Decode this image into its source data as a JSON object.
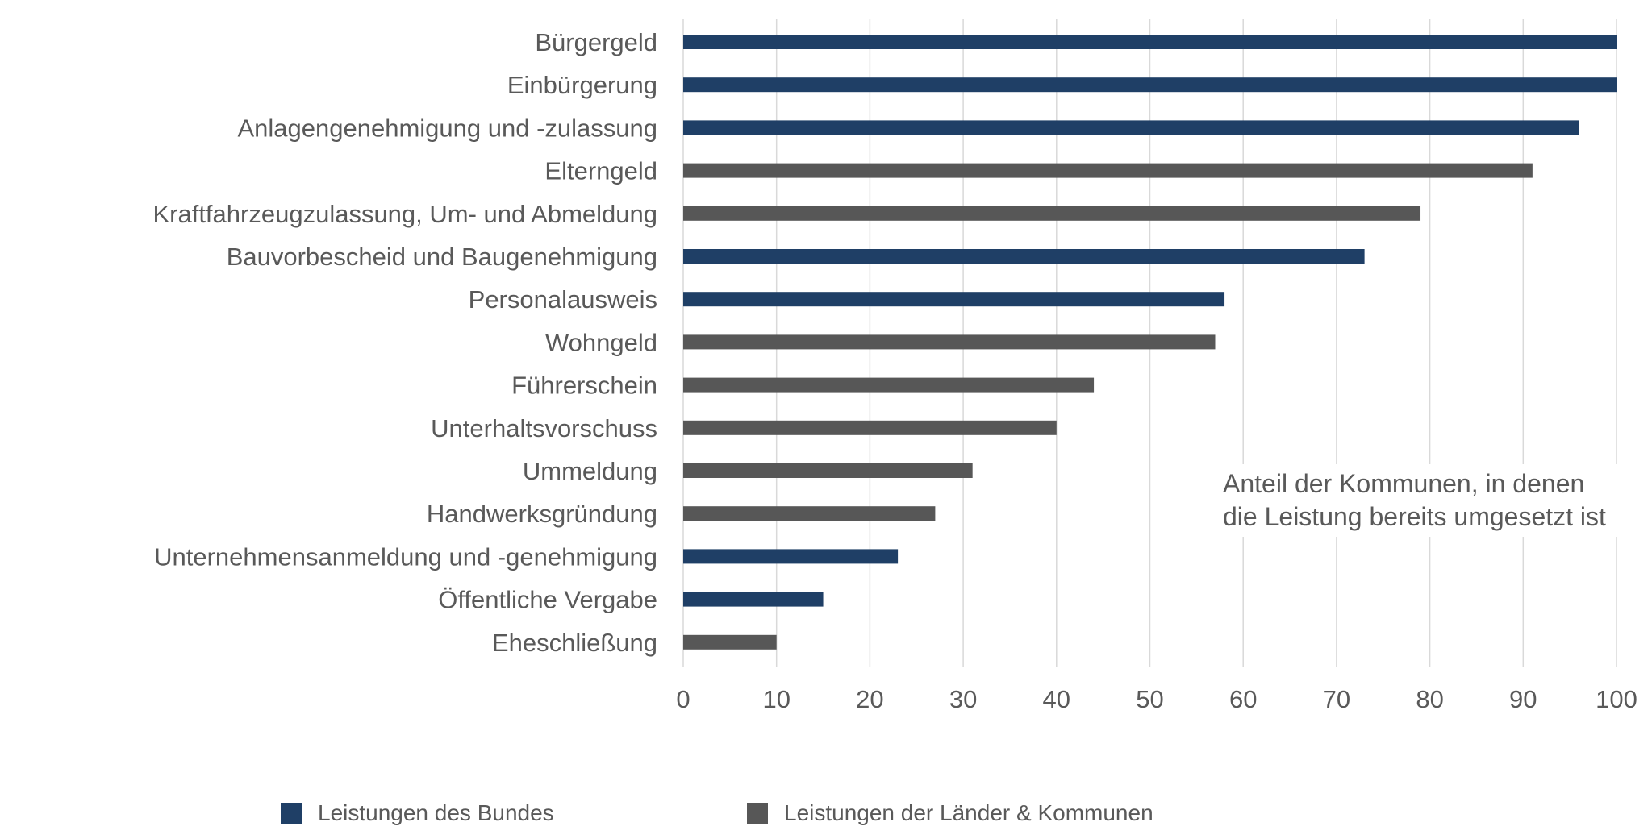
{
  "chart_data": {
    "type": "bar",
    "orientation": "horizontal",
    "categories": [
      "Bürgergeld",
      "Einbürgerung",
      "Anlagengenehmigung und -zulassung",
      "Elterngeld",
      "Kraftfahrzeugzulassung, Um- und Abmeldung",
      "Bauvorbescheid und Baugenehmigung",
      "Personalausweis",
      "Wohngeld",
      "Führerschein",
      "Unterhaltsvorschuss",
      "Ummeldung",
      "Handwerksgründung",
      "Unternehmensanmeldung und -genehmigung",
      "Öffentliche Vergabe",
      "Eheschließung"
    ],
    "values": [
      100,
      100,
      96,
      91,
      79,
      73,
      58,
      57,
      44,
      40,
      31,
      27,
      23,
      15,
      10
    ],
    "group": [
      "bund",
      "bund",
      "bund",
      "laender",
      "laender",
      "bund",
      "bund",
      "laender",
      "laender",
      "laender",
      "laender",
      "laender",
      "bund",
      "bund",
      "laender"
    ],
    "series": [
      {
        "key": "bund",
        "name": "Leistungen des Bundes",
        "color": "#1f3f66"
      },
      {
        "key": "laender",
        "name": "Leistungen der Länder & Kommunen",
        "color": "#575757"
      }
    ],
    "xlim": [
      0,
      100
    ],
    "xticks": [
      "0",
      "10",
      "20",
      "30",
      "40",
      "50",
      "60",
      "70",
      "80",
      "90",
      "100"
    ],
    "grid": true,
    "legend_position": "bottom",
    "annotation": "Anteil der Kommunen, in denen die Leistung bereits umgesetzt ist"
  }
}
